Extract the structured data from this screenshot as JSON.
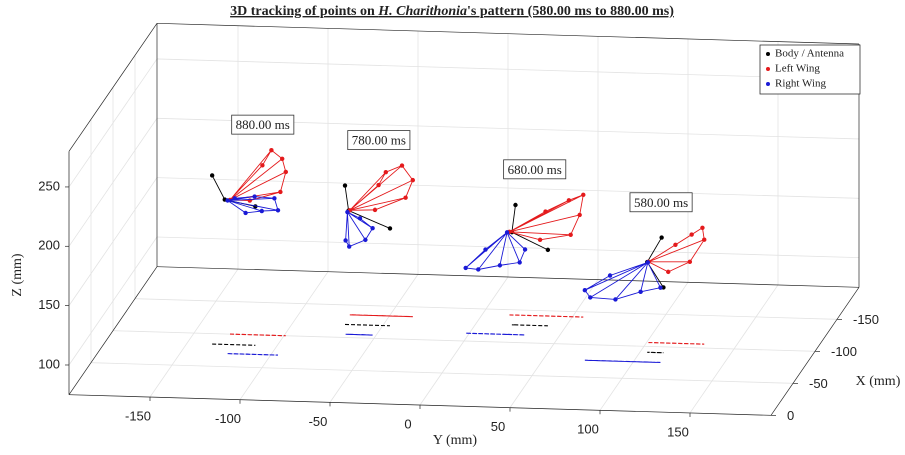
{
  "chart_data": {
    "type": "scatter3d",
    "title_parts": [
      "3D tracking of points on ",
      "H. Charithonia",
      "'s pattern (580.00 ms to 880.00 ms)"
    ],
    "xlabel": "Y (mm)",
    "ylabel": "X (mm)",
    "zlabel": "Z (mm)",
    "ylim": [
      -195,
      195
    ],
    "yticks": [
      -150,
      -100,
      -50,
      0,
      50,
      100,
      150
    ],
    "xlim": [
      -200,
      0
    ],
    "xticks": [
      -150,
      -100,
      -50,
      0
    ],
    "zlim": [
      75,
      280
    ],
    "zticks": [
      100,
      150,
      200,
      250
    ],
    "grid": true,
    "legend": "top-right",
    "series": [
      {
        "name": "Body / Antenna",
        "color": "#000000"
      },
      {
        "name": "Left Wing",
        "color": "#e41a1c"
      },
      {
        "name": "Right Wing",
        "color": "#1a1ad6"
      }
    ],
    "snapshots": [
      {
        "label": "880.00 ms",
        "parts": [
          {
            "x": [
              -84,
              -84,
              -84
            ],
            "y": [
              -136,
              -129,
              -112
            ],
            "z": [
              217,
              197,
              192
            ]
          },
          {
            "x": [
              -100,
              -100,
              -100,
              -100,
              -100,
              -100,
              -100
            ],
            "y": [
              -130,
              -112,
              -107,
              -101,
              -99,
              -102,
              -119
            ],
            "z": [
              188,
              218,
              231,
              224,
              213,
              196,
              188
            ]
          },
          {
            "x": [
              -70,
              -70,
              -70,
              -70,
              -70,
              -70,
              -70
            ],
            "y": [
              -124,
              -114,
              -105,
              -96,
              -98,
              -109,
              -120
            ],
            "z": [
              204,
              194,
              196,
              197,
              207,
              208,
              206
            ]
          }
        ]
      },
      {
        "label": "780.00 ms",
        "parts": [
          {
            "x": [
              -120,
              -120,
              -120
            ],
            "y": [
              -71,
              -69,
              -46
            ],
            "z": [
              192,
              171,
              157
            ]
          },
          {
            "x": [
              -135,
              -135,
              -135,
              -135,
              -135,
              -135,
              -135
            ],
            "y": [
              -72,
              -56,
              -52,
              -43,
              -37,
              -41,
              -58
            ],
            "z": [
              163,
              185,
              196,
              202,
              190,
              175,
              164
            ]
          },
          {
            "x": [
              -105,
              -105,
              -105,
              -105,
              -105,
              -105
            ],
            "y": [
              -66,
              -67,
              -65,
              -56,
              -52,
              -59
            ],
            "z": [
              178,
              154,
              149,
              155,
              165,
              173
            ]
          }
        ]
      },
      {
        "label": "680.00 ms",
        "parts": [
          {
            "x": [
              -127,
              -127,
              -127
            ],
            "y": [
              22,
              20,
              40
            ],
            "z": [
              176,
              153,
              139
            ]
          },
          {
            "x": [
              -142,
              -142,
              -142,
              -142,
              -142,
              -142,
              -142
            ],
            "y": [
              15,
              35,
              48,
              56,
              54,
              49,
              32
            ],
            "z": [
              145,
              163,
              173,
              178,
              161,
              144,
              139
            ]
          },
          {
            "x": [
              -112,
              -112,
              -112,
              -112,
              -112,
              -112,
              -112
            ],
            "y": [
              21,
              9,
              -2,
              5,
              17,
              28,
              31
            ],
            "z": [
              161,
              146,
              130,
              129,
              133,
              136,
              147
            ]
          }
        ]
      },
      {
        "label": "580.00 ms",
        "parts": [
          {
            "x": [
              -91,
              -91,
              -91
            ],
            "y": [
              112,
              104,
              113
            ],
            "z": [
              172,
              151,
              130
            ]
          },
          {
            "x": [
              -106,
              -106,
              -106,
              -106,
              -106,
              -106,
              -106
            ],
            "y": [
              101,
              116,
              125,
              131,
              132,
              124,
              112
            ],
            "z": [
              143,
              158,
              167,
              173,
              163,
              144,
              135
            ]
          },
          {
            "x": [
              -76,
              -76,
              -76,
              -76,
              -76,
              -76,
              -76
            ],
            "y": [
              108,
              87,
              73,
              76,
              90,
              104,
              115
            ],
            "z": [
              159,
              147,
              134,
              128,
              127,
              134,
              138
            ]
          }
        ]
      }
    ]
  }
}
